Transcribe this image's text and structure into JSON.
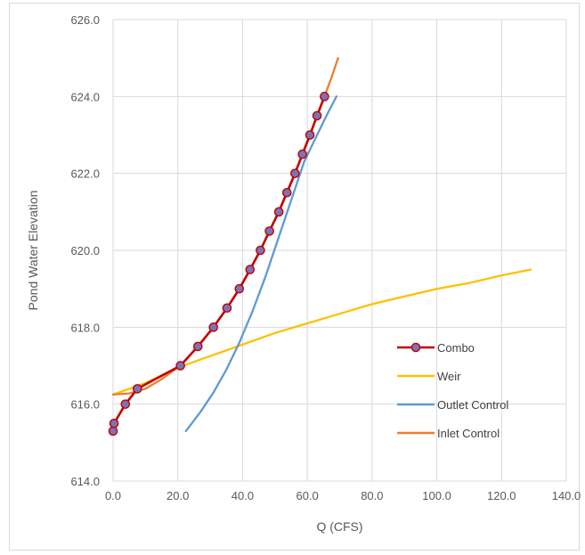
{
  "chart_data": {
    "type": "scatter",
    "title": "",
    "xlabel": "Q (CFS)",
    "ylabel": "Pond Water Elevation",
    "xlim": [
      0,
      140
    ],
    "ylim": [
      614,
      626
    ],
    "x_ticks": [
      "0.0",
      "20.0",
      "40.0",
      "60.0",
      "80.0",
      "100.0",
      "120.0",
      "140.0"
    ],
    "y_ticks": [
      "614.0",
      "616.0",
      "618.0",
      "620.0",
      "622.0",
      "624.0",
      "626.0"
    ],
    "grid": true,
    "legend_position": "lower-right",
    "series": [
      {
        "name": "Combo",
        "color": "#c00000",
        "marker_color": "#7b72b8",
        "style": "line-with-markers",
        "points": [
          [
            0.0,
            615.3
          ],
          [
            0.3,
            615.5
          ],
          [
            3.8,
            616.0
          ],
          [
            7.5,
            616.4
          ],
          [
            20.8,
            617.0
          ],
          [
            26.2,
            617.5
          ],
          [
            31.0,
            618.0
          ],
          [
            35.2,
            618.5
          ],
          [
            39.0,
            619.0
          ],
          [
            42.3,
            619.5
          ],
          [
            45.5,
            620.0
          ],
          [
            48.3,
            620.5
          ],
          [
            51.2,
            621.0
          ],
          [
            53.7,
            621.5
          ],
          [
            56.2,
            622.0
          ],
          [
            58.5,
            622.5
          ],
          [
            60.8,
            623.0
          ],
          [
            63.0,
            623.5
          ],
          [
            65.3,
            624.0
          ]
        ]
      },
      {
        "name": "Weir",
        "color": "#ffc000",
        "style": "line",
        "points": [
          [
            0,
            616.25
          ],
          [
            10,
            616.55
          ],
          [
            20,
            616.95
          ],
          [
            30,
            617.25
          ],
          [
            40,
            617.55
          ],
          [
            50,
            617.85
          ],
          [
            60,
            618.1
          ],
          [
            70,
            618.35
          ],
          [
            80,
            618.6
          ],
          [
            90,
            618.8
          ],
          [
            100,
            619.0
          ],
          [
            110,
            619.15
          ],
          [
            120,
            619.35
          ],
          [
            129,
            619.5
          ]
        ]
      },
      {
        "name": "Outlet Control",
        "color": "#5b9bd5",
        "style": "line",
        "points": [
          [
            22.5,
            615.3
          ],
          [
            27,
            615.8
          ],
          [
            31,
            616.3
          ],
          [
            35,
            616.9
          ],
          [
            39,
            617.6
          ],
          [
            43,
            618.4
          ],
          [
            47,
            619.3
          ],
          [
            51,
            620.3
          ],
          [
            55,
            621.3
          ],
          [
            59,
            622.3
          ],
          [
            63,
            623.0
          ],
          [
            66.5,
            623.6
          ],
          [
            69,
            624.0
          ]
        ]
      },
      {
        "name": "Inlet Control",
        "color": "#ed7d31",
        "style": "line",
        "points": [
          [
            0,
            616.25
          ],
          [
            5,
            616.28
          ],
          [
            10,
            616.4
          ],
          [
            15,
            616.65
          ],
          [
            20.8,
            617.0
          ],
          [
            26.2,
            617.5
          ],
          [
            31.0,
            618.0
          ],
          [
            35.2,
            618.5
          ],
          [
            39.0,
            619.0
          ],
          [
            42.3,
            619.5
          ],
          [
            45.5,
            620.0
          ],
          [
            48.3,
            620.5
          ],
          [
            51.2,
            621.0
          ],
          [
            53.7,
            621.5
          ],
          [
            56.2,
            622.0
          ],
          [
            58.5,
            622.5
          ],
          [
            60.8,
            623.0
          ],
          [
            63.0,
            623.5
          ],
          [
            65.3,
            624.0
          ],
          [
            67.5,
            624.5
          ],
          [
            69.5,
            625.0
          ]
        ]
      }
    ]
  }
}
